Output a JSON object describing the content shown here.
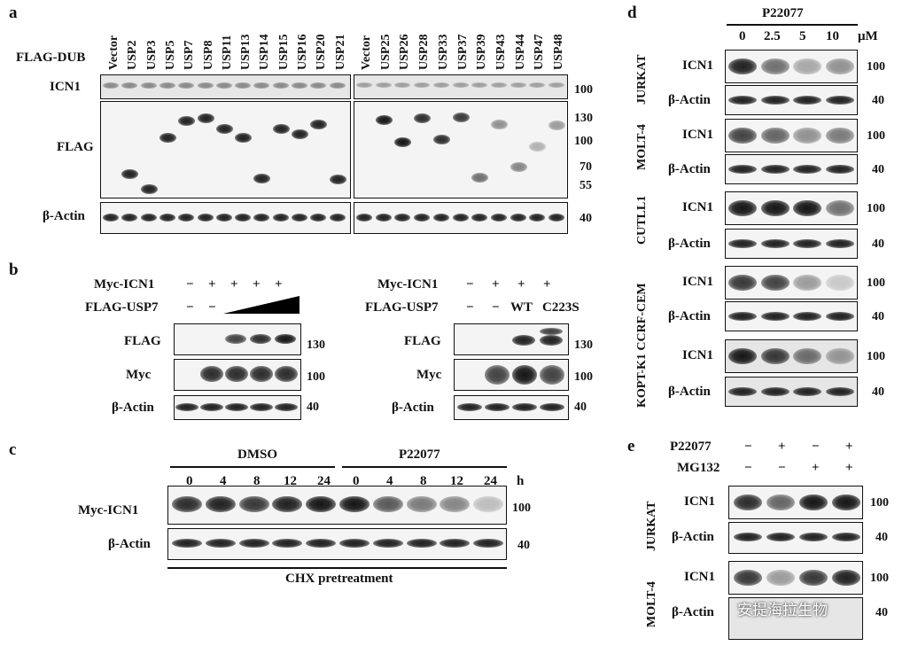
{
  "panel_a": {
    "label": "a",
    "row_header": "FLAG-DUB",
    "lanes_left": [
      "Vector",
      "USP2",
      "USP3",
      "USP5",
      "USP7",
      "USP8",
      "USP11",
      "USP13",
      "USP14",
      "USP15",
      "USP16",
      "USP20",
      "USP21"
    ],
    "lanes_right": [
      "Vector",
      "USP25",
      "USP26",
      "USP28",
      "USP33",
      "USP37",
      "USP39",
      "USP43",
      "USP44",
      "USP47",
      "USP48"
    ],
    "rows": {
      "icn1": "ICN1",
      "flag": "FLAG",
      "actin": "β-Actin"
    },
    "markers": {
      "m100a": "100",
      "m130": "130",
      "m100b": "100",
      "m70": "70",
      "m55": "55",
      "m40": "40"
    }
  },
  "panel_b": {
    "label": "b",
    "left": {
      "myc_label": "Myc-ICN1",
      "myc_signs": [
        "−",
        "+",
        "+",
        "+",
        "+"
      ],
      "flag_label": "FLAG-USP7",
      "flag_signs": [
        "−",
        "−"
      ],
      "rows": {
        "flag": "FLAG",
        "myc": "Myc",
        "actin": "β-Actin"
      },
      "markers": {
        "m130": "130",
        "m100": "100",
        "m40": "40"
      }
    },
    "right": {
      "myc_label": "Myc-ICN1",
      "myc_signs": [
        "−",
        "+",
        "+",
        "+"
      ],
      "flag_label": "FLAG-USP7",
      "flag_signs": [
        "−",
        "−",
        "WT",
        "C223S"
      ],
      "rows": {
        "flag": "FLAG",
        "myc": "Myc",
        "actin": "β-Actin"
      },
      "markers": {
        "m130": "130",
        "m100": "100",
        "m40": "40"
      }
    }
  },
  "panel_c": {
    "label": "c",
    "group1": "DMSO",
    "group2": "P22077",
    "times1": [
      "0",
      "4",
      "8",
      "12",
      "24"
    ],
    "times2": [
      "0",
      "4",
      "8",
      "12",
      "24"
    ],
    "unit": "h",
    "rows": {
      "icn1": "Myc-ICN1",
      "actin": "β-Actin"
    },
    "markers": {
      "m100": "100",
      "m40": "40"
    },
    "footer": "CHX pretreatment"
  },
  "panel_d": {
    "label": "d",
    "drug": "P22077",
    "doses": [
      "0",
      "2.5",
      "5",
      "10"
    ],
    "unit": "μM",
    "cell_lines": [
      "JURKAT",
      "MOLT-4",
      "CUTLL1",
      "KOPT-K1 CCRF-CEM"
    ],
    "row_labels": {
      "icn1": "ICN1",
      "actin": "β-Actin"
    },
    "markers": {
      "m100": "100",
      "m40": "40"
    }
  },
  "panel_e": {
    "label": "e",
    "drug1": "P22077",
    "drug1_signs": [
      "−",
      "+",
      "−",
      "+"
    ],
    "drug2": "MG132",
    "drug2_signs": [
      "−",
      "−",
      "+",
      "+"
    ],
    "cell_lines": [
      "JURKAT",
      "MOLT-4"
    ],
    "row_labels": {
      "icn1": "ICN1",
      "actin": "β-Actin"
    },
    "markers": {
      "m100": "100",
      "m40": "40"
    }
  },
  "watermark": "安提海拉生物"
}
